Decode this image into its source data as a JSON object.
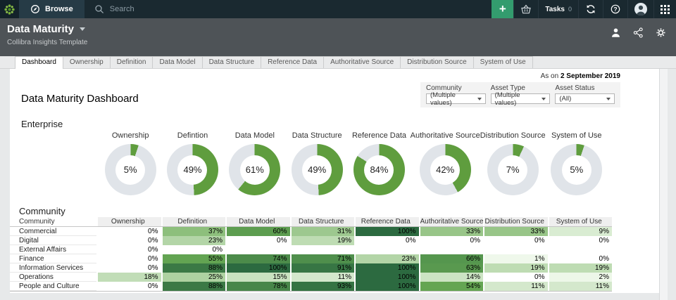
{
  "navbar": {
    "browse_label": "Browse",
    "search_placeholder": "Search",
    "tasks_label": "Tasks",
    "tasks_count": "0",
    "plus_label": "+"
  },
  "header": {
    "title": "Data Maturity",
    "subtitle": "Collibra Insights Template"
  },
  "tabs": [
    "Dashboard",
    "Ownership",
    "Definition",
    "Data Model",
    "Data Structure",
    "Reference Data",
    "Authoritative Source",
    "Distribution Source",
    "System of Use"
  ],
  "active_tab": "Dashboard",
  "as_on": {
    "prefix": "As on",
    "date": "2 September 2019"
  },
  "page_title": "Data Maturity Dashboard",
  "filters": [
    {
      "label": "Community",
      "value": "(Multiple values)"
    },
    {
      "label": "Asset Type",
      "value": "(Multiple values)"
    },
    {
      "label": "Asset Status",
      "value": "(All)"
    }
  ],
  "colors": {
    "donut_fill": "#5f9d3e",
    "donut_track": "#e0e4e9",
    "heat_light": "#f2faee",
    "heat_mid": "#69aa54",
    "heat_dark": "#2c6a40",
    "nav_plus_green": "#339c6e"
  },
  "chart_data": [
    {
      "type": "pie",
      "subtype": "donut",
      "title": "Enterprise",
      "unit": "%",
      "categories": [
        "Ownership",
        "Defintion",
        "Data Model",
        "Data Structure",
        "Reference Data",
        "Authoritative Source",
        "Distribution Source",
        "System of Use"
      ],
      "values": [
        5,
        49,
        61,
        49,
        84,
        42,
        7,
        5
      ]
    },
    {
      "type": "heatmap",
      "title": "Community",
      "unit": "%",
      "columns": [
        "Community",
        "Ownership",
        "Definition",
        "Data Model",
        "Data Structure",
        "Reference Data",
        "Authoritative Source",
        "Distribution Source",
        "System of Use"
      ],
      "rows": [
        {
          "community": "Commercial",
          "values": [
            0,
            37,
            60,
            31,
            100,
            33,
            33,
            9
          ]
        },
        {
          "community": "Digital",
          "values": [
            0,
            23,
            0,
            19,
            0,
            0,
            0,
            0
          ]
        },
        {
          "community": "External Affairs",
          "values": [
            0,
            0,
            null,
            null,
            null,
            null,
            null,
            null
          ]
        },
        {
          "community": "Finance",
          "values": [
            0,
            55,
            74,
            71,
            23,
            66,
            1,
            0
          ]
        },
        {
          "community": "Information Services",
          "values": [
            0,
            88,
            100,
            91,
            100,
            63,
            19,
            19
          ]
        },
        {
          "community": "Operations",
          "values": [
            18,
            25,
            15,
            11,
            100,
            14,
            0,
            2
          ]
        },
        {
          "community": "People and Culture",
          "values": [
            0,
            88,
            78,
            93,
            100,
            54,
            11,
            11
          ]
        }
      ]
    }
  ]
}
